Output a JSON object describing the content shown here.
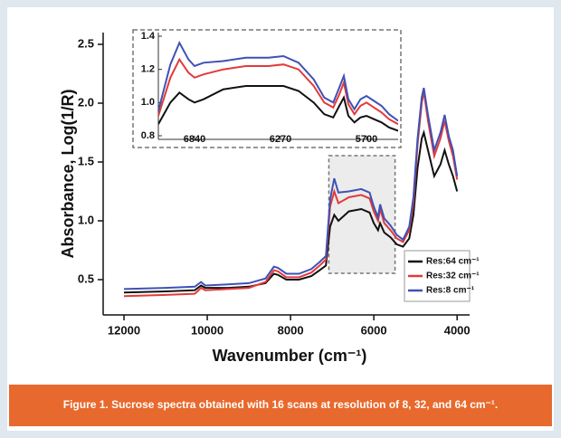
{
  "caption": "Figure 1. Sucrose spectra obtained with 16 scans at resolution of 8, 32, and 64 cm⁻¹.",
  "chart_data": [
    {
      "type": "line",
      "x_label": "Wavenumber (cm⁻¹)",
      "y_label": "Absorbance, Log(1/R)",
      "xlim": [
        12500,
        3700
      ],
      "ylim": [
        0.2,
        2.6
      ],
      "xticks": [
        12000,
        10000,
        8000,
        6000,
        4000
      ],
      "yticks": [
        0.5,
        {
          "value": 1,
          "label": "1.0"
        },
        1.5,
        {
          "value": 2,
          "label": "2.0"
        },
        2.5
      ],
      "legend": "lower right",
      "x": [
        12000,
        11000,
        10300,
        10150,
        10050,
        9500,
        9000,
        8600,
        8400,
        8300,
        8100,
        7800,
        7500,
        7300,
        7150,
        7050,
        6950,
        6850,
        6600,
        6300,
        6100,
        6000,
        5900,
        5850,
        5750,
        5600,
        5450,
        5300,
        5150,
        5050,
        4950,
        4850,
        4800,
        4700,
        4550,
        4400,
        4300,
        4200,
        4100,
        4000
      ],
      "series": [
        {
          "name": "Res:64 cm⁻¹",
          "color": "#111111",
          "values": [
            0.39,
            0.4,
            0.41,
            0.45,
            0.43,
            0.43,
            0.44,
            0.47,
            0.55,
            0.54,
            0.5,
            0.5,
            0.53,
            0.58,
            0.62,
            0.95,
            1.05,
            1.0,
            1.08,
            1.1,
            1.07,
            0.98,
            0.92,
            0.98,
            0.9,
            0.86,
            0.8,
            0.78,
            0.85,
            1.05,
            1.45,
            1.7,
            1.75,
            1.6,
            1.38,
            1.48,
            1.6,
            1.48,
            1.38,
            1.25
          ]
        },
        {
          "name": "Res:32 cm⁻¹",
          "color": "#e23a3a",
          "values": [
            0.36,
            0.37,
            0.38,
            0.43,
            0.41,
            0.42,
            0.43,
            0.48,
            0.58,
            0.57,
            0.52,
            0.52,
            0.56,
            0.62,
            0.67,
            1.12,
            1.25,
            1.15,
            1.2,
            1.22,
            1.19,
            1.08,
            1.0,
            1.1,
            0.98,
            0.92,
            0.85,
            0.82,
            0.92,
            1.15,
            1.65,
            2.0,
            2.1,
            1.85,
            1.55,
            1.7,
            1.85,
            1.68,
            1.55,
            1.35
          ]
        },
        {
          "name": "Res:8 cm⁻¹",
          "color": "#3f51b5",
          "values": [
            0.42,
            0.43,
            0.44,
            0.48,
            0.45,
            0.46,
            0.47,
            0.51,
            0.61,
            0.6,
            0.55,
            0.55,
            0.59,
            0.65,
            0.7,
            1.18,
            1.36,
            1.24,
            1.25,
            1.27,
            1.24,
            1.12,
            1.03,
            1.14,
            1.02,
            0.96,
            0.88,
            0.84,
            0.95,
            1.2,
            1.7,
            2.05,
            2.13,
            1.9,
            1.6,
            1.75,
            1.9,
            1.72,
            1.6,
            1.38
          ]
        }
      ]
    },
    {
      "type": "line",
      "xlim": [
        7080,
        5490
      ],
      "ylim": [
        0.8,
        1.4
      ],
      "xticks": [
        6840,
        6270,
        5700
      ],
      "yticks": [
        0.8,
        {
          "value": 1,
          "label": "1.0"
        },
        1.2,
        1.4
      ],
      "x": [
        7080,
        7000,
        6940,
        6880,
        6840,
        6780,
        6650,
        6500,
        6350,
        6250,
        6150,
        6050,
        5980,
        5920,
        5880,
        5850,
        5820,
        5780,
        5740,
        5700,
        5650,
        5600,
        5550,
        5490
      ],
      "series": [
        {
          "color": "#111111",
          "values": [
            0.87,
            1.0,
            1.06,
            1.02,
            1.0,
            1.02,
            1.08,
            1.1,
            1.1,
            1.1,
            1.07,
            1.0,
            0.93,
            0.91,
            0.98,
            1.03,
            0.92,
            0.88,
            0.91,
            0.92,
            0.9,
            0.88,
            0.85,
            0.83
          ]
        },
        {
          "color": "#e23a3a",
          "values": [
            0.92,
            1.15,
            1.26,
            1.18,
            1.15,
            1.17,
            1.2,
            1.22,
            1.22,
            1.23,
            1.2,
            1.1,
            1.0,
            0.97,
            1.05,
            1.12,
            0.99,
            0.93,
            0.98,
            1.0,
            0.97,
            0.94,
            0.9,
            0.87
          ]
        },
        {
          "color": "#3f51b5",
          "values": [
            0.95,
            1.23,
            1.36,
            1.26,
            1.22,
            1.24,
            1.25,
            1.27,
            1.27,
            1.28,
            1.24,
            1.14,
            1.03,
            1.0,
            1.09,
            1.16,
            1.02,
            0.96,
            1.02,
            1.04,
            1.01,
            0.98,
            0.93,
            0.89
          ]
        }
      ]
    }
  ]
}
